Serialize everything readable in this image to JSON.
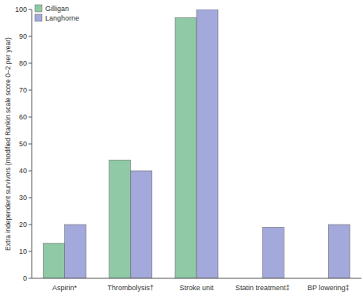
{
  "chart_data": {
    "type": "bar",
    "y_label": "Extra independent survivors (modified Rankin scale score 0–2 per year)",
    "categories": [
      "Aspirin*",
      "Thrombolysis†",
      "Stroke unit",
      "Statin treatment‡",
      "BP lowering‡"
    ],
    "series": [
      {
        "name": "Gilligan",
        "color": "#8fc9a6",
        "values": [
          13,
          44,
          97,
          null,
          null
        ]
      },
      {
        "name": "Langhorne",
        "color": "#a4a9dc",
        "values": [
          20,
          40,
          100,
          19,
          20
        ]
      }
    ],
    "ylim": [
      0,
      100
    ],
    "yticks": [
      0,
      10,
      20,
      30,
      40,
      50,
      60,
      70,
      80,
      90,
      100
    ],
    "grid": false,
    "legend": "top-left"
  }
}
